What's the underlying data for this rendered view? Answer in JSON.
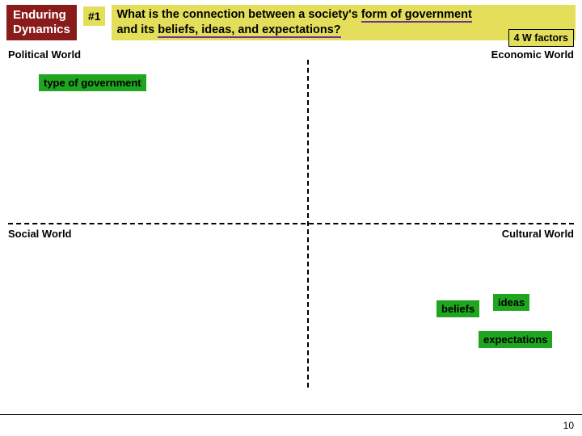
{
  "header": {
    "badge_title": "Enduring\nDynamics",
    "number": "#1",
    "question_pre": "What is the connection between a society's ",
    "question_u1": "form of government",
    "question_mid": "\nand its ",
    "question_u2": "beliefs, ideas, and expectations?",
    "factors_label": "4 W factors"
  },
  "quadrants": {
    "tl": "Political World",
    "tr": "Economic World",
    "bl": "Social World",
    "br": "Cultural World"
  },
  "tags": {
    "type_gov": "type of government",
    "beliefs": "beliefs",
    "ideas": "ideas",
    "expectations": "expectations"
  },
  "page": "10",
  "colors": {
    "red_badge": "#8a1b1b",
    "yellow": "#e3df5b",
    "green": "#1fa51f",
    "purple_underline": "#6e2f9e"
  }
}
